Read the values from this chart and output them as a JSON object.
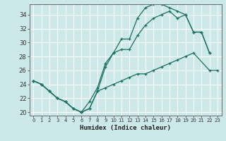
{
  "xlabel": "Humidex (Indice chaleur)",
  "bg_color": "#cce8e8",
  "line_color": "#1a7060",
  "grid_color": "#ffffff",
  "xlim": [
    -0.5,
    23.5
  ],
  "ylim": [
    19.5,
    35.5
  ],
  "xticks": [
    0,
    1,
    2,
    3,
    4,
    5,
    6,
    7,
    8,
    9,
    10,
    11,
    12,
    13,
    14,
    15,
    16,
    17,
    18,
    19,
    20,
    21,
    22,
    23
  ],
  "yticks": [
    20,
    22,
    24,
    26,
    28,
    30,
    32,
    34
  ],
  "line1_x": [
    0,
    1,
    2,
    3,
    4,
    5,
    6,
    7,
    8,
    9,
    10,
    11,
    12,
    13,
    14,
    15,
    16,
    17,
    18,
    19,
    20,
    21,
    22
  ],
  "line1_y": [
    24.5,
    24.0,
    23.0,
    22.0,
    21.5,
    20.5,
    20.0,
    20.5,
    23.0,
    26.5,
    28.5,
    30.5,
    30.5,
    33.5,
    35.0,
    35.5,
    35.5,
    35.0,
    34.5,
    34.0,
    31.5,
    31.5,
    28.5
  ],
  "line2_x": [
    0,
    1,
    2,
    3,
    4,
    5,
    6,
    7,
    8,
    9,
    10,
    11,
    12,
    13,
    14,
    15,
    16,
    17,
    18,
    19,
    20,
    21,
    22
  ],
  "line2_y": [
    24.5,
    24.0,
    23.0,
    22.0,
    21.5,
    20.5,
    20.0,
    21.5,
    23.5,
    27.0,
    28.5,
    29.0,
    29.0,
    31.0,
    32.5,
    33.5,
    34.0,
    34.5,
    33.5,
    34.0,
    31.5,
    31.5,
    28.5
  ],
  "line3_x": [
    0,
    1,
    2,
    3,
    4,
    5,
    6,
    7,
    8,
    9,
    10,
    11,
    12,
    13,
    14,
    15,
    16,
    17,
    18,
    19,
    20,
    22,
    23
  ],
  "line3_y": [
    24.5,
    24.0,
    23.0,
    22.0,
    21.5,
    20.5,
    20.0,
    20.5,
    23.0,
    23.5,
    24.0,
    24.5,
    25.0,
    25.5,
    25.5,
    26.0,
    26.5,
    27.0,
    27.5,
    28.0,
    28.5,
    26.0,
    26.0
  ]
}
